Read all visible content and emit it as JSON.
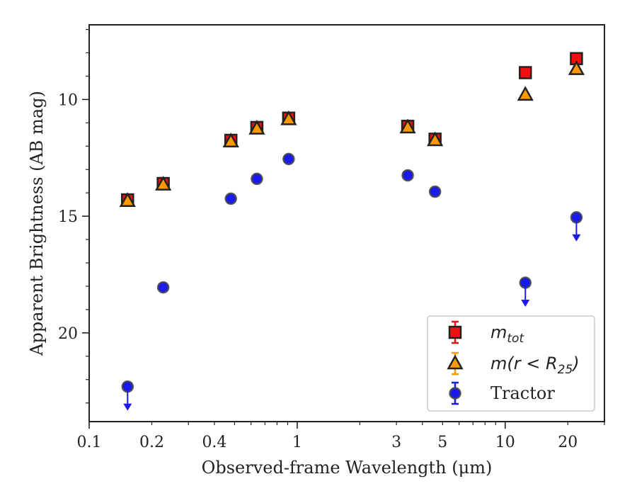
{
  "chart_data": {
    "type": "scatter",
    "title": "",
    "xlabel": "Observed-frame Wavelength (μm)",
    "ylabel": "Apparent Brightness (AB mag)",
    "xscale": "log",
    "xlim": [
      0.1,
      30
    ],
    "ylim": [
      23.8,
      6.8
    ],
    "y_inverted": true,
    "grid": false,
    "legend_position": "bottom-right",
    "x_ticks": [
      {
        "value": 0.1,
        "label": "0.1"
      },
      {
        "value": 0.2,
        "label": "0.2"
      },
      {
        "value": 0.4,
        "label": "0.4"
      },
      {
        "value": 1,
        "label": "1"
      },
      {
        "value": 3,
        "label": "3"
      },
      {
        "value": 5,
        "label": "5"
      },
      {
        "value": 10,
        "label": "10"
      },
      {
        "value": 20,
        "label": "20"
      }
    ],
    "y_ticks": [
      {
        "value": 10,
        "label": "10"
      },
      {
        "value": 15,
        "label": "15"
      },
      {
        "value": 20,
        "label": "20"
      }
    ],
    "series": [
      {
        "name": "m_tot",
        "legend_main": "m",
        "legend_sub": "tot",
        "marker": "square",
        "color": "#ee1111",
        "edge": "#222222",
        "points": [
          {
            "x": 0.153,
            "y": 14.3
          },
          {
            "x": 0.227,
            "y": 13.6
          },
          {
            "x": 0.48,
            "y": 11.75
          },
          {
            "x": 0.64,
            "y": 11.2
          },
          {
            "x": 0.91,
            "y": 10.8
          },
          {
            "x": 3.4,
            "y": 11.15
          },
          {
            "x": 4.6,
            "y": 11.7
          },
          {
            "x": 12.5,
            "y": 8.85
          },
          {
            "x": 22,
            "y": 8.25
          }
        ]
      },
      {
        "name": "m(r<R25)",
        "legend_main": "m(r < R",
        "legend_sub": "25",
        "legend_close": ")",
        "marker": "triangle",
        "color": "#ff9900",
        "edge": "#222222",
        "points": [
          {
            "x": 0.153,
            "y": 14.35
          },
          {
            "x": 0.227,
            "y": 13.65
          },
          {
            "x": 0.48,
            "y": 11.8
          },
          {
            "x": 0.64,
            "y": 11.25
          },
          {
            "x": 0.91,
            "y": 10.85
          },
          {
            "x": 3.4,
            "y": 11.2
          },
          {
            "x": 4.6,
            "y": 11.75
          },
          {
            "x": 12.5,
            "y": 9.8
          },
          {
            "x": 22,
            "y": 8.7
          }
        ]
      },
      {
        "name": "Tractor",
        "marker": "circle",
        "color": "#1a1aee",
        "edge": "#444444",
        "points": [
          {
            "x": 0.153,
            "y": 22.3,
            "upper_limit": true
          },
          {
            "x": 0.227,
            "y": 18.05
          },
          {
            "x": 0.48,
            "y": 14.25
          },
          {
            "x": 0.64,
            "y": 13.4
          },
          {
            "x": 0.91,
            "y": 12.55
          },
          {
            "x": 3.4,
            "y": 13.25
          },
          {
            "x": 4.6,
            "y": 13.95
          },
          {
            "x": 12.5,
            "y": 17.85,
            "upper_limit": true
          },
          {
            "x": 22,
            "y": 15.05,
            "upper_limit": true
          }
        ]
      }
    ]
  }
}
